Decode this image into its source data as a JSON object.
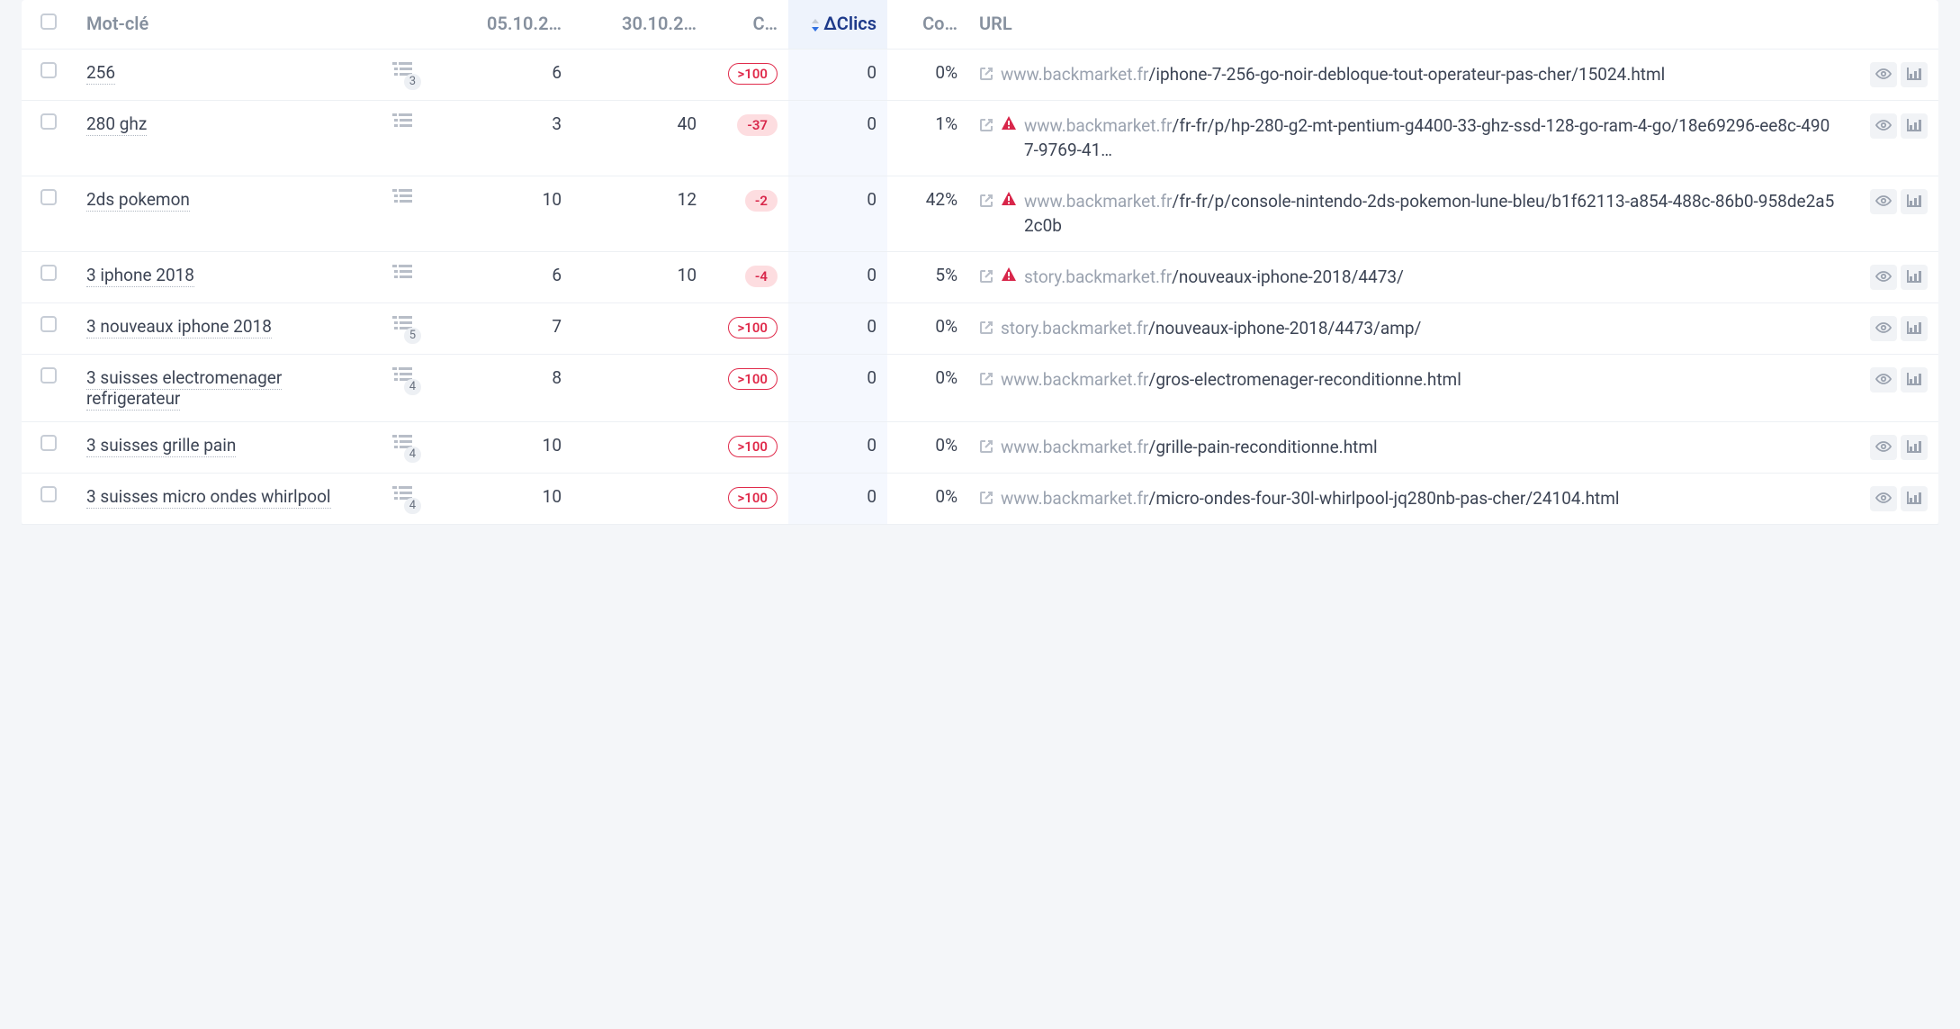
{
  "colors": {
    "page_bg": "#f4f6f9",
    "text": "#3c4454",
    "muted": "#9aa2af",
    "header_muted": "#86909e",
    "border": "#edf0f4",
    "sorted_bg": "#eef3fc",
    "sorted_text": "#1e3a8a",
    "pill_border": "#e02b4b",
    "pill_neg_bg": "#fddde0",
    "badge_bg": "#edf0f4",
    "warn": "#d8264a",
    "action_bg": "#f1f3f6"
  },
  "headers": {
    "keyword": "Mot-clé",
    "date1": "05.10.2…",
    "date2": "30.10.2…",
    "c": "C…",
    "dclics": "ΔClics",
    "co": "Co…",
    "url": "URL"
  },
  "rows": [
    {
      "keyword": "256",
      "badge": "3",
      "d1": "6",
      "d2": "",
      "c": ">100",
      "c_style": "outline",
      "dclics": "0",
      "co": "0%",
      "warn": false,
      "domain": "www.backmarket.fr",
      "path": "/iphone-7-256-go-noir-debloque-tout-operateur-pas-cher/15024.html"
    },
    {
      "keyword": "280 ghz",
      "badge": "",
      "d1": "3",
      "d2": "40",
      "c": "-37",
      "c_style": "neg",
      "dclics": "0",
      "co": "1%",
      "warn": true,
      "domain": "www.backmarket.fr",
      "path": "/fr-fr/p/hp-280-g2-mt-pentium-g4400-33-ghz-ssd-128-go-ram-4-go/18e69296-ee8c-4907-9769-41…"
    },
    {
      "keyword": "2ds pokemon",
      "badge": "",
      "d1": "10",
      "d2": "12",
      "c": "-2",
      "c_style": "neg",
      "dclics": "0",
      "co": "42%",
      "warn": true,
      "domain": "www.backmarket.fr",
      "path": "/fr-fr/p/console-nintendo-2ds-pokemon-lune-bleu/b1f62113-a854-488c-86b0-958de2a52c0b"
    },
    {
      "keyword": "3 iphone 2018",
      "badge": "",
      "d1": "6",
      "d2": "10",
      "c": "-4",
      "c_style": "neg",
      "dclics": "0",
      "co": "5%",
      "warn": true,
      "domain": "story.backmarket.fr",
      "path": "/nouveaux-iphone-2018/4473/"
    },
    {
      "keyword": "3 nouveaux iphone 2018",
      "badge": "5",
      "d1": "7",
      "d2": "",
      "c": ">100",
      "c_style": "outline",
      "dclics": "0",
      "co": "0%",
      "warn": false,
      "domain": "story.backmarket.fr",
      "path": "/nouveaux-iphone-2018/4473/amp/"
    },
    {
      "keyword": "3 suisses electromenager refrigerateur",
      "badge": "4",
      "d1": "8",
      "d2": "",
      "c": ">100",
      "c_style": "outline",
      "dclics": "0",
      "co": "0%",
      "warn": false,
      "domain": "www.backmarket.fr",
      "path": "/gros-electromenager-reconditionne.html"
    },
    {
      "keyword": "3 suisses grille pain",
      "badge": "4",
      "d1": "10",
      "d2": "",
      "c": ">100",
      "c_style": "outline",
      "dclics": "0",
      "co": "0%",
      "warn": false,
      "domain": "www.backmarket.fr",
      "path": "/grille-pain-reconditionne.html"
    },
    {
      "keyword": "3 suisses micro ondes whirlpool",
      "badge": "4",
      "d1": "10",
      "d2": "",
      "c": ">100",
      "c_style": "outline",
      "dclics": "0",
      "co": "0%",
      "warn": false,
      "domain": "www.backmarket.fr",
      "path": "/micro-ondes-four-30l-whirlpool-jq280nb-pas-cher/24104.html"
    }
  ]
}
